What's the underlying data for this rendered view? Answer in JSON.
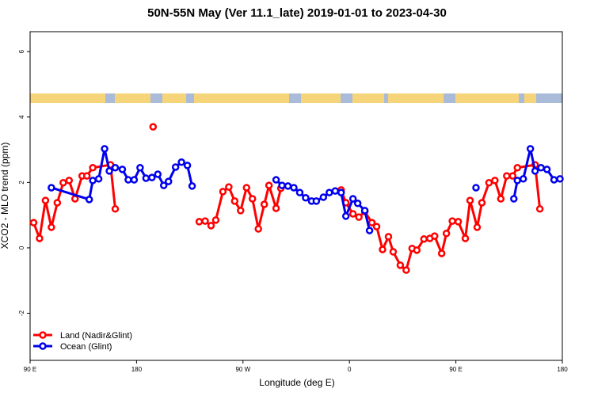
{
  "chart_data": {
    "type": "line",
    "title": "50N-55N May (Ver 11.1_late)   2019-01-01 to 2023-04-30",
    "x_label": "Longitude (deg E)",
    "y_label": "XCO2 - MLO trend (ppm)",
    "xlim": [
      90,
      540
    ],
    "ylim": [
      -3.44,
      6.61
    ],
    "xticks": [
      {
        "value": 90,
        "label": "90 E"
      },
      180,
      {
        "value": 270,
        "label": "90 W"
      },
      {
        "value": 360,
        "label": "0"
      },
      {
        "value": 450,
        "label": "90 E"
      },
      {
        "value": 540,
        "label": "180"
      }
    ],
    "yticks": [
      -2,
      0,
      2,
      4,
      6
    ],
    "legend": "bottom-left",
    "series": [
      {
        "name": "Land (Nadir&Glint)",
        "color": "#ff0000",
        "x": [
          93,
          98,
          103,
          108,
          113,
          118,
          123,
          128,
          134,
          138,
          143,
          158,
          162,
          null,
          194,
          null,
          233,
          238,
          243,
          247,
          253,
          258,
          263,
          268,
          273,
          278,
          283,
          288,
          292,
          298,
          302,
          null,
          353,
          357,
          363,
          368,
          373,
          379,
          383,
          388,
          393,
          397,
          403,
          408,
          413,
          417,
          423,
          428,
          432,
          438,
          442,
          447,
          452,
          458,
          462,
          468,
          472,
          478,
          483,
          488,
          493,
          498,
          502,
          517,
          521
        ],
        "values": [
          0.77,
          0.29,
          1.45,
          0.63,
          1.38,
          1.99,
          2.06,
          1.5,
          2.2,
          2.2,
          2.45,
          2.54,
          1.19,
          null,
          3.7,
          null,
          0.8,
          0.82,
          0.68,
          0.85,
          1.72,
          1.86,
          1.43,
          1.14,
          1.84,
          1.5,
          0.58,
          1.33,
          1.91,
          1.21,
          1.82,
          null,
          1.77,
          1.38,
          1.04,
          0.94,
          1.11,
          0.77,
          0.65,
          -0.05,
          0.34,
          -0.12,
          -0.53,
          -0.68,
          -0.02,
          -0.07,
          0.27,
          0.29,
          0.36,
          -0.17,
          0.44,
          0.82,
          0.8,
          0.29,
          1.45,
          0.63,
          1.38,
          1.99,
          2.06,
          1.5,
          2.2,
          2.2,
          2.45,
          2.54,
          1.19
        ]
      },
      {
        "name": "Ocean (Glint)",
        "color": "#0000ee",
        "x": [
          108,
          140,
          143,
          148,
          153,
          157,
          162,
          168,
          173,
          178,
          183,
          188,
          193,
          198,
          203,
          207,
          213,
          218,
          223,
          227,
          null,
          298,
          303,
          308,
          313,
          318,
          323,
          328,
          332,
          338,
          343,
          348,
          353,
          357,
          363,
          367,
          373,
          377,
          null,
          467,
          null,
          499,
          502,
          507,
          513,
          517,
          522,
          527,
          533,
          538
        ],
        "values": [
          1.84,
          1.48,
          2.06,
          2.11,
          3.03,
          2.35,
          2.45,
          2.4,
          2.08,
          2.08,
          2.45,
          2.13,
          2.15,
          2.25,
          1.91,
          2.03,
          2.47,
          2.62,
          2.52,
          1.89,
          null,
          2.08,
          1.91,
          1.89,
          1.84,
          1.69,
          1.53,
          1.43,
          1.43,
          1.55,
          1.69,
          1.74,
          1.69,
          0.97,
          1.5,
          1.36,
          1.14,
          0.53,
          null,
          1.84,
          null,
          1.5,
          2.06,
          2.11,
          3.03,
          2.35,
          2.45,
          2.4,
          2.08,
          2.11
        ]
      }
    ]
  }
}
